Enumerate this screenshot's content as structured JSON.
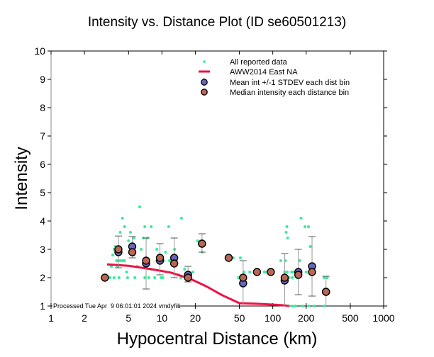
{
  "chart_data": {
    "type": "scatter",
    "title": "Intensity vs. Distance Plot (ID se60501213)",
    "xlabel": "Hypocentral Distance (km)",
    "ylabel": "Intensity",
    "xscale": "log",
    "xlim": [
      1,
      1000
    ],
    "ylim": [
      1,
      10
    ],
    "x_ticks": [
      1,
      2,
      5,
      10,
      20,
      50,
      100,
      200,
      500,
      1000
    ],
    "x_tick_labels": [
      "1",
      "2",
      "5",
      "10",
      "20",
      "50",
      "100",
      "200",
      "500",
      "1000"
    ],
    "y_ticks": [
      1,
      2,
      3,
      4,
      5,
      6,
      7,
      8,
      9,
      10
    ],
    "y_tick_labels": [
      "1",
      "2",
      "3",
      "4",
      "5",
      "6",
      "7",
      "8",
      "9",
      "10"
    ],
    "grid": false,
    "legend_position": "top-right",
    "legend": [
      {
        "label": "All reported data",
        "symbol": "dot",
        "color": "#33ee99"
      },
      {
        "label": "AWW2014 East NA",
        "symbol": "line",
        "color": "#ee1144"
      },
      {
        "label": "Mean int +/-1 STDEV each dist bin",
        "symbol": "circle-errorbar",
        "color": "#6666bb"
      },
      {
        "label": "Median intensity each distance bin",
        "symbol": "circle",
        "color": "#bb6655"
      }
    ],
    "stamp": "Processed Tue Apr  9 06:01:01 2024 vmdyfi1",
    "colors": {
      "data": "#33ee99",
      "model": "#ee1144",
      "mean": "#6666bb",
      "median": "#bb6655",
      "errorbar": "#999999"
    },
    "series": [
      {
        "name": "All reported data",
        "points": [
          [
            3.4,
            2.0
          ],
          [
            3.7,
            2.0
          ],
          [
            4.1,
            2.0
          ],
          [
            3.6,
            2.8
          ],
          [
            3.7,
            3.0
          ],
          [
            3.8,
            3.1
          ],
          [
            3.9,
            2.6
          ],
          [
            4.0,
            2.6
          ],
          [
            4.2,
            2.6
          ],
          [
            4.4,
            2.6
          ],
          [
            4.6,
            2.6
          ],
          [
            4.2,
            3.6
          ],
          [
            4.6,
            3.8
          ],
          [
            4.4,
            4.1
          ],
          [
            3.5,
            2.4
          ],
          [
            3.8,
            3.0
          ],
          [
            4.0,
            2.4
          ],
          [
            5.0,
            3.3
          ],
          [
            5.2,
            3.6
          ],
          [
            5.6,
            2.8
          ],
          [
            5.1,
            2.9
          ],
          [
            5.6,
            3.4
          ],
          [
            4.8,
            2.2
          ],
          [
            5.7,
            2.0
          ],
          [
            6.0,
            2.4
          ],
          [
            6.3,
            4.5
          ],
          [
            4.9,
            2.0
          ],
          [
            6.8,
            3.4
          ],
          [
            7.0,
            3.8
          ],
          [
            7.4,
            3.4
          ],
          [
            8.0,
            3.8
          ],
          [
            7.0,
            2.0
          ],
          [
            7.6,
            2.0
          ],
          [
            8.6,
            2.0
          ],
          [
            6.5,
            3.0
          ],
          [
            8.0,
            2.3
          ],
          [
            9.0,
            2.6
          ],
          [
            9.5,
            2.8
          ],
          [
            10.3,
            2.6
          ],
          [
            10.8,
            2.9
          ],
          [
            9.0,
            3.0
          ],
          [
            9.8,
            2.0
          ],
          [
            10.2,
            2.0
          ],
          [
            11.5,
            3.8
          ],
          [
            12.0,
            2.6
          ],
          [
            13.5,
            2.6
          ],
          [
            14.0,
            2.1
          ],
          [
            15.0,
            4.1
          ],
          [
            13.0,
            3.0
          ],
          [
            11.7,
            2.6
          ],
          [
            14.8,
            2.0
          ],
          [
            16.5,
            2.0
          ],
          [
            17.5,
            2.0
          ],
          [
            19.0,
            2.2
          ],
          [
            16.0,
            2.3
          ],
          [
            21.0,
            3.3
          ],
          [
            23.0,
            2.9
          ],
          [
            44.0,
            2.7
          ],
          [
            51.0,
            2.7
          ],
          [
            55.0,
            2.2
          ],
          [
            53.0,
            2.0
          ],
          [
            49.0,
            2.0
          ],
          [
            62.0,
            2.2
          ],
          [
            84.0,
            2.2
          ],
          [
            88.0,
            2.2
          ],
          [
            118.0,
            2.6
          ],
          [
            130.0,
            2.6
          ],
          [
            128.0,
            2.2
          ],
          [
            135.0,
            2.2
          ],
          [
            140.0,
            2.0
          ],
          [
            148.0,
            2.2
          ],
          [
            154.0,
            2.2
          ],
          [
            150.0,
            2.0
          ],
          [
            132.0,
            3.6
          ],
          [
            134.0,
            3.8
          ],
          [
            136.0,
            3.4
          ],
          [
            160.0,
            2.2
          ],
          [
            165.0,
            2.0
          ],
          [
            175.0,
            2.6
          ],
          [
            180.0,
            4.1
          ],
          [
            195.0,
            3.8
          ],
          [
            210.0,
            3.8
          ],
          [
            218.0,
            3.1
          ],
          [
            200.0,
            2.2
          ],
          [
            230.0,
            2.2
          ],
          [
            290.0,
            2.0
          ],
          [
            310.0,
            2.0
          ],
          [
            140.0,
            1.0
          ],
          [
            150.0,
            1.0
          ],
          [
            160.0,
            1.0
          ],
          [
            185.0,
            1.0
          ],
          [
            210.0,
            1.0
          ],
          [
            235.0,
            1.0
          ],
          [
            290.0,
            1.0
          ]
        ]
      },
      {
        "name": "AWW2014 East NA",
        "points": [
          [
            3.2,
            2.47
          ],
          [
            5,
            2.42
          ],
          [
            8,
            2.3
          ],
          [
            12,
            2.18
          ],
          [
            18,
            1.96
          ],
          [
            25,
            1.7
          ],
          [
            35,
            1.38
          ],
          [
            50,
            1.1
          ],
          [
            70,
            1.08
          ],
          [
            100,
            1.05
          ],
          [
            130,
            1.02
          ],
          [
            140,
            1.0
          ]
        ]
      },
      {
        "name": "Mean int +/-1 STDEV each dist bin",
        "points": [
          {
            "x": 4.05,
            "y": 2.9,
            "lo": 2.35,
            "hi": 3.47
          },
          {
            "x": 5.4,
            "y": 3.1,
            "lo": 2.7,
            "hi": 3.45
          },
          {
            "x": 7.2,
            "y": 2.5,
            "lo": 1.6,
            "hi": 3.4
          },
          {
            "x": 9.6,
            "y": 2.6,
            "lo": 2.1,
            "hi": 3.2
          },
          {
            "x": 12.9,
            "y": 2.7,
            "lo": 2.0,
            "hi": 3.4
          },
          {
            "x": 17.2,
            "y": 2.1,
            "lo": 1.85,
            "hi": 2.4
          },
          {
            "x": 23.0,
            "y": 3.2,
            "lo": 2.9,
            "hi": 3.55
          },
          {
            "x": 54.0,
            "y": 1.8,
            "lo": 1.0,
            "hi": 2.6
          },
          {
            "x": 128.0,
            "y": 1.9,
            "lo": 1.0,
            "hi": 2.85
          },
          {
            "x": 170.0,
            "y": 2.2,
            "lo": 1.4,
            "hi": 3.0
          },
          {
            "x": 226.0,
            "y": 2.4,
            "lo": 1.35,
            "hi": 3.45
          },
          {
            "x": 302.0,
            "y": 1.5,
            "lo": 1.0,
            "hi": 2.05
          }
        ]
      },
      {
        "name": "Median intensity each distance bin",
        "points": [
          [
            3.06,
            2.0
          ],
          [
            4.05,
            3.0
          ],
          [
            5.4,
            2.9
          ],
          [
            7.2,
            2.6
          ],
          [
            9.6,
            2.7
          ],
          [
            12.9,
            2.5
          ],
          [
            17.2,
            2.0
          ],
          [
            23.0,
            3.2
          ],
          [
            40.0,
            2.7
          ],
          [
            54.0,
            2.0
          ],
          [
            72.0,
            2.2
          ],
          [
            96.0,
            2.2
          ],
          [
            128.0,
            2.0
          ],
          [
            170.0,
            2.1
          ],
          [
            226.0,
            2.2
          ],
          [
            302.0,
            1.5
          ]
        ]
      }
    ]
  }
}
